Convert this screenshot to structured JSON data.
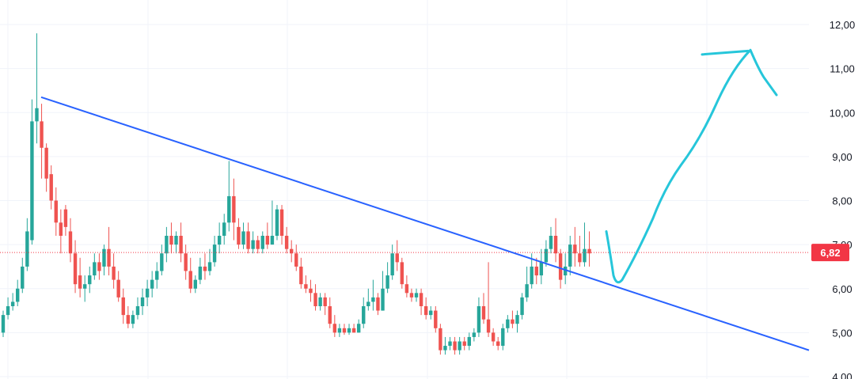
{
  "chart_data": {
    "type": "candlestick",
    "y_axis": {
      "range": [
        4.0,
        12.3
      ],
      "ticks": [
        "12,00",
        "11,00",
        "10,00",
        "9,00",
        "8,00",
        "7,00",
        "6,00",
        "5,00",
        "4,00"
      ],
      "tick_values": [
        12,
        11,
        10,
        9,
        8,
        7,
        6,
        5,
        4
      ],
      "position": "right"
    },
    "grid": true,
    "current_price": {
      "value": 6.82,
      "label": "6,82"
    },
    "colors": {
      "up": "#26a69a",
      "down": "#ef5350",
      "trendline": "#2962ff",
      "projection": "#26c6da",
      "grid": "#f0f3fa",
      "badge": "#f23645"
    },
    "candles": [
      [
        5.0,
        5.4,
        5.5,
        4.9
      ],
      [
        5.4,
        5.6,
        5.8,
        5.3
      ],
      [
        5.6,
        5.7,
        5.9,
        5.5
      ],
      [
        5.7,
        6.0,
        6.2,
        5.6
      ],
      [
        6.0,
        6.5,
        6.7,
        5.9
      ],
      [
        6.5,
        7.3,
        7.6,
        6.4
      ],
      [
        7.1,
        9.8,
        10.3,
        7.0
      ],
      [
        9.8,
        10.1,
        11.8,
        9.3
      ],
      [
        9.8,
        9.2,
        10.2,
        8.5
      ],
      [
        9.2,
        8.5,
        9.3,
        8.2
      ],
      [
        8.6,
        8.0,
        8.8,
        7.8
      ],
      [
        8.0,
        7.5,
        8.3,
        7.2
      ],
      [
        7.5,
        7.2,
        7.8,
        6.8
      ],
      [
        7.8,
        7.4,
        7.9,
        7.2
      ],
      [
        7.3,
        6.8,
        7.6,
        6.6
      ],
      [
        6.8,
        6.1,
        7.1,
        5.9
      ],
      [
        6.3,
        6.0,
        6.7,
        5.8
      ],
      [
        6.0,
        6.1,
        6.3,
        5.7
      ],
      [
        6.1,
        6.3,
        6.5,
        5.9
      ],
      [
        6.3,
        6.6,
        6.8,
        6.2
      ],
      [
        6.6,
        6.4,
        6.8,
        6.2
      ],
      [
        6.5,
        6.9,
        7.0,
        6.3
      ],
      [
        6.9,
        6.5,
        7.4,
        6.3
      ],
      [
        6.5,
        6.2,
        6.8,
        6.0
      ],
      [
        6.2,
        5.8,
        6.4,
        5.7
      ],
      [
        5.8,
        5.4,
        6.0,
        5.2
      ],
      [
        5.4,
        5.2,
        5.6,
        5.1
      ],
      [
        5.2,
        5.4,
        5.5,
        5.1
      ],
      [
        5.4,
        5.6,
        5.8,
        5.3
      ],
      [
        5.6,
        5.8,
        6.0,
        5.4
      ],
      [
        5.8,
        6.0,
        6.2,
        5.6
      ],
      [
        6.0,
        6.2,
        6.4,
        5.8
      ],
      [
        6.2,
        6.4,
        6.6,
        6.0
      ],
      [
        6.4,
        6.8,
        7.0,
        6.3
      ],
      [
        6.8,
        7.2,
        7.4,
        6.6
      ],
      [
        7.2,
        7.0,
        7.5,
        6.8
      ],
      [
        7.0,
        7.2,
        7.3,
        6.8
      ],
      [
        7.2,
        6.8,
        7.5,
        6.6
      ],
      [
        6.8,
        6.4,
        7.0,
        6.2
      ],
      [
        6.4,
        6.0,
        6.7,
        5.9
      ],
      [
        6.0,
        6.2,
        6.3,
        5.9
      ],
      [
        6.2,
        6.5,
        6.7,
        6.1
      ],
      [
        6.5,
        6.4,
        6.8,
        6.2
      ],
      [
        6.4,
        6.6,
        6.9,
        6.3
      ],
      [
        6.6,
        7.0,
        7.2,
        6.5
      ],
      [
        7.0,
        7.2,
        7.5,
        6.8
      ],
      [
        7.2,
        7.5,
        7.7,
        7.0
      ],
      [
        7.5,
        8.1,
        8.9,
        7.3
      ],
      [
        8.1,
        7.5,
        8.5,
        7.1
      ],
      [
        7.4,
        7.0,
        7.6,
        6.9
      ],
      [
        7.0,
        7.3,
        7.5,
        6.9
      ],
      [
        7.3,
        6.9,
        7.5,
        6.8
      ],
      [
        6.9,
        7.1,
        7.3,
        6.8
      ],
      [
        7.1,
        6.9,
        7.2,
        6.8
      ],
      [
        6.9,
        7.2,
        7.3,
        6.8
      ],
      [
        7.2,
        7.0,
        7.5,
        6.9
      ],
      [
        7.0,
        7.2,
        8.0,
        7.0
      ],
      [
        7.2,
        7.8,
        7.9,
        7.1
      ],
      [
        7.8,
        7.2,
        7.9,
        7.0
      ],
      [
        7.2,
        6.9,
        7.4,
        6.8
      ],
      [
        6.9,
        6.8,
        7.1,
        6.6
      ],
      [
        6.8,
        6.5,
        7.0,
        6.4
      ],
      [
        6.5,
        6.1,
        6.7,
        6.0
      ],
      [
        6.1,
        6.0,
        6.3,
        5.9
      ],
      [
        6.0,
        5.9,
        6.2,
        5.7
      ],
      [
        5.9,
        5.6,
        6.1,
        5.5
      ],
      [
        5.6,
        5.8,
        5.9,
        5.5
      ],
      [
        5.8,
        5.6,
        5.9,
        5.4
      ],
      [
        5.6,
        5.2,
        5.8,
        5.1
      ],
      [
        5.2,
        5.0,
        5.4,
        4.9
      ],
      [
        5.0,
        5.1,
        5.2,
        4.9
      ],
      [
        5.1,
        5.0,
        5.2,
        4.95
      ],
      [
        5.0,
        5.1,
        5.2,
        4.95
      ],
      [
        5.1,
        5.0,
        5.2,
        5.0
      ],
      [
        5.0,
        5.2,
        5.3,
        5.0
      ],
      [
        5.2,
        5.6,
        5.8,
        5.1
      ],
      [
        5.6,
        5.7,
        6.0,
        5.5
      ],
      [
        5.7,
        5.8,
        6.2,
        5.5
      ],
      [
        5.8,
        5.5,
        5.9,
        5.4
      ],
      [
        5.5,
        6.0,
        6.4,
        5.5
      ],
      [
        6.0,
        6.3,
        6.6,
        5.9
      ],
      [
        6.3,
        6.8,
        7.0,
        6.2
      ],
      [
        6.8,
        6.6,
        7.1,
        6.4
      ],
      [
        6.6,
        6.1,
        6.7,
        6.0
      ],
      [
        6.1,
        5.9,
        6.3,
        5.8
      ],
      [
        5.9,
        5.8,
        6.0,
        5.7
      ],
      [
        5.8,
        5.9,
        6.0,
        5.7
      ],
      [
        5.9,
        5.6,
        6.0,
        5.4
      ],
      [
        5.6,
        5.4,
        5.8,
        5.3
      ],
      [
        5.4,
        5.5,
        5.6,
        5.3
      ],
      [
        5.5,
        5.1,
        5.6,
        5.0
      ],
      [
        5.1,
        4.6,
        5.2,
        4.5
      ],
      [
        4.6,
        4.7,
        4.9,
        4.5
      ],
      [
        4.7,
        4.8,
        4.9,
        4.6
      ],
      [
        4.8,
        4.6,
        4.9,
        4.5
      ],
      [
        4.6,
        4.8,
        4.9,
        4.5
      ],
      [
        4.8,
        4.7,
        4.9,
        4.6
      ],
      [
        4.7,
        4.9,
        5.0,
        4.6
      ],
      [
        4.9,
        5.0,
        5.1,
        4.8
      ],
      [
        5.0,
        5.6,
        5.8,
        4.9
      ],
      [
        5.6,
        5.3,
        5.9,
        5.2
      ],
      [
        5.3,
        5.0,
        6.6,
        4.9
      ],
      [
        5.0,
        4.8,
        5.1,
        4.7
      ],
      [
        4.8,
        4.7,
        4.9,
        4.6
      ],
      [
        4.7,
        5.1,
        5.2,
        4.6
      ],
      [
        5.1,
        5.3,
        5.4,
        5.0
      ],
      [
        5.3,
        5.2,
        5.5,
        5.1
      ],
      [
        5.2,
        5.4,
        5.5,
        5.0
      ],
      [
        5.4,
        5.8,
        5.9,
        5.3
      ],
      [
        5.8,
        6.1,
        6.5,
        5.7
      ],
      [
        6.1,
        6.5,
        6.8,
        6.0
      ],
      [
        6.5,
        6.3,
        6.7,
        6.1
      ],
      [
        6.3,
        6.6,
        6.9,
        6.1
      ],
      [
        6.6,
        6.9,
        7.1,
        6.5
      ],
      [
        6.9,
        7.2,
        7.4,
        6.8
      ],
      [
        7.2,
        6.8,
        7.6,
        6.6
      ],
      [
        6.8,
        6.2,
        6.9,
        6.0
      ],
      [
        6.3,
        6.5,
        6.8,
        6.1
      ],
      [
        6.5,
        7.0,
        7.2,
        6.3
      ],
      [
        7.0,
        6.8,
        7.4,
        6.5
      ],
      [
        6.8,
        6.6,
        7.2,
        6.5
      ],
      [
        6.6,
        6.9,
        7.5,
        6.5
      ],
      [
        6.9,
        6.8,
        7.3,
        6.5
      ]
    ],
    "trendline": [
      [
        10.35,
        6.8
      ],
      [
        4.6,
        6.8
      ]
    ],
    "projection_path": [
      [
        6.2,
        6.3
      ],
      [
        6.5,
        6.8
      ],
      [
        7.0,
        7.2
      ],
      [
        7.6,
        7.8
      ],
      [
        8.2,
        8.2
      ],
      [
        8.8,
        8.8
      ],
      [
        9.5,
        9.5
      ],
      [
        10.3,
        10.2
      ],
      [
        11.0,
        11.0
      ],
      [
        11.42,
        11.4
      ],
      [
        10.8,
        10.8
      ],
      [
        10.4,
        10.4
      ]
    ]
  }
}
